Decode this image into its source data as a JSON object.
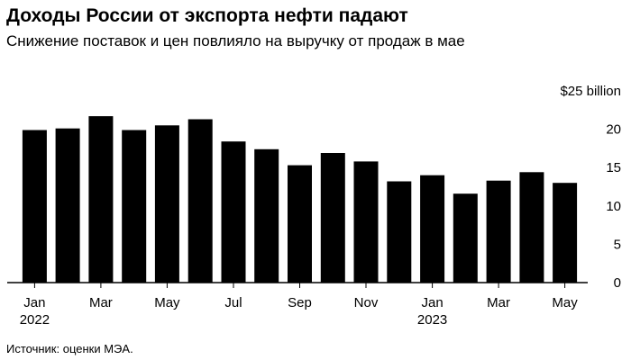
{
  "chart_data": {
    "type": "bar",
    "title": "Доходы России от экспорта нефти падают",
    "subtitle": "Снижение поставок и цен повлияло на выручку от продаж в мае",
    "categories": [
      "Jan 2022",
      "Feb 2022",
      "Mar 2022",
      "Apr 2022",
      "May 2022",
      "Jun 2022",
      "Jul 2022",
      "Aug 2022",
      "Sep 2022",
      "Oct 2022",
      "Nov 2022",
      "Dec 2022",
      "Jan 2023",
      "Feb 2023",
      "Mar 2023",
      "Apr 2023",
      "May 2023"
    ],
    "values": [
      19.9,
      20.1,
      21.7,
      19.9,
      20.5,
      21.3,
      18.4,
      17.4,
      15.3,
      16.9,
      15.8,
      13.2,
      14.0,
      11.6,
      13.3,
      14.4,
      13.0
    ],
    "x_tick_labels": [
      {
        "index": 0,
        "label": "Jan",
        "year": "2022"
      },
      {
        "index": 2,
        "label": "Mar",
        "year": ""
      },
      {
        "index": 4,
        "label": "May",
        "year": ""
      },
      {
        "index": 6,
        "label": "Jul",
        "year": ""
      },
      {
        "index": 8,
        "label": "Sep",
        "year": ""
      },
      {
        "index": 10,
        "label": "Nov",
        "year": ""
      },
      {
        "index": 12,
        "label": "Jan",
        "year": "2023"
      },
      {
        "index": 14,
        "label": "Mar",
        "year": ""
      },
      {
        "index": 16,
        "label": "May",
        "year": ""
      }
    ],
    "y_ticks": [
      {
        "value": 25,
        "label": "$25 billion"
      },
      {
        "value": 20,
        "label": "20"
      },
      {
        "value": 15,
        "label": "15"
      },
      {
        "value": 10,
        "label": "10"
      },
      {
        "value": 5,
        "label": "5"
      },
      {
        "value": 0,
        "label": "0"
      }
    ],
    "ylim": [
      0,
      25
    ],
    "xlabel": "",
    "ylabel": "",
    "grid": false,
    "legend": "none",
    "source": "Источник: оценки МЭА."
  },
  "colors": {
    "bar": "#000000",
    "text": "#000000",
    "background": "#ffffff"
  }
}
